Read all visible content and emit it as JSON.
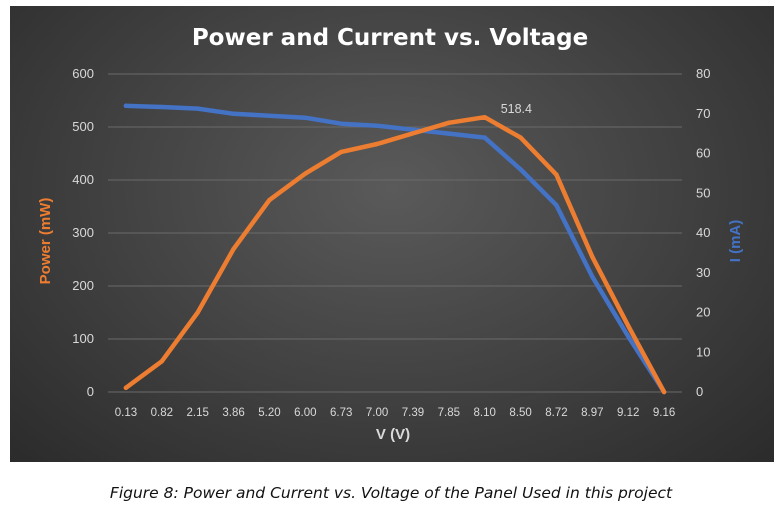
{
  "chart_data": {
    "type": "line",
    "title": "Power and Current vs. Voltage",
    "xlabel": "V (V)",
    "ylabel": "Power (mW)",
    "y2label": "I  (mA)",
    "categories": [
      "0.13",
      "0.82",
      "2.15",
      "3.86",
      "5.20",
      "6.00",
      "6.73",
      "7.00",
      "7.39",
      "7.85",
      "8.10",
      "8.50",
      "8.72",
      "8.97",
      "9.12",
      "9.16"
    ],
    "ylim": [
      0,
      600
    ],
    "yticks": [
      0,
      100,
      200,
      300,
      400,
      500,
      600
    ],
    "y2lim": [
      0,
      80
    ],
    "y2ticks": [
      0,
      10,
      20,
      30,
      40,
      50,
      60,
      70,
      80
    ],
    "grid": true,
    "series": [
      {
        "name": "Power",
        "axis": "left",
        "color": "#ed7d31",
        "values": [
          8,
          58,
          150,
          270,
          362,
          412,
          453,
          468,
          488,
          508,
          518.4,
          480,
          410,
          255,
          125,
          0
        ]
      },
      {
        "name": "Current",
        "axis": "right",
        "color": "#4472c4",
        "values": [
          72,
          71.7,
          71.3,
          70,
          69.5,
          69,
          67.5,
          67,
          66,
          65,
          64,
          56,
          47,
          29,
          14,
          0
        ]
      }
    ],
    "annotations": [
      {
        "series": 0,
        "index": 10,
        "text": "518.4"
      }
    ]
  },
  "caption": "Figure 8: Power and Current vs. Voltage of the Panel Used in this project"
}
